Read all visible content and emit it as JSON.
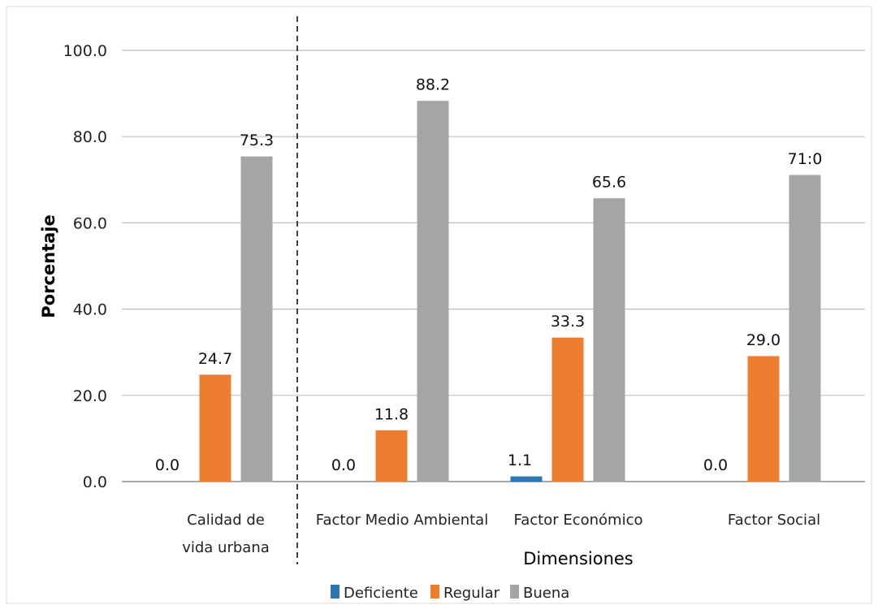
{
  "chart_data": {
    "type": "bar",
    "categories": [
      "Calidad de vida urbana",
      "Factor Medio Ambiental",
      "Factor Económico",
      "Factor Social"
    ],
    "category_lines": [
      [
        "Calidad de",
        "vida urbana"
      ],
      [
        "Factor Medio Ambiental"
      ],
      [
        "Factor Económico"
      ],
      [
        "Factor Social"
      ]
    ],
    "series": [
      {
        "name": "Deficiente",
        "color": "#2e75b6",
        "values": [
          0.0,
          0.0,
          1.1,
          0.0
        ]
      },
      {
        "name": "Regular",
        "color": "#ed7d31",
        "values": [
          24.7,
          11.8,
          33.3,
          29.0
        ]
      },
      {
        "name": "Buena",
        "color": "#a5a5a5",
        "values": [
          75.3,
          88.2,
          65.6,
          71.0
        ]
      }
    ],
    "data_labels": [
      [
        "0.0",
        "0.0",
        "1.1",
        "0.0"
      ],
      [
        "24.7",
        "11.8",
        "33.3",
        "29.0"
      ],
      [
        "75.3",
        "88.2",
        "65.6",
        "71:0"
      ]
    ],
    "ylim": [
      0,
      100
    ],
    "yticks": [
      "0.0",
      "20.0",
      "40.0",
      "60.0",
      "80.0",
      "100.0"
    ],
    "ylabel": "Porcentaje",
    "xlabel": "Dimensiones",
    "grid": true,
    "legend": "bottom",
    "separator_after_category": 0
  }
}
